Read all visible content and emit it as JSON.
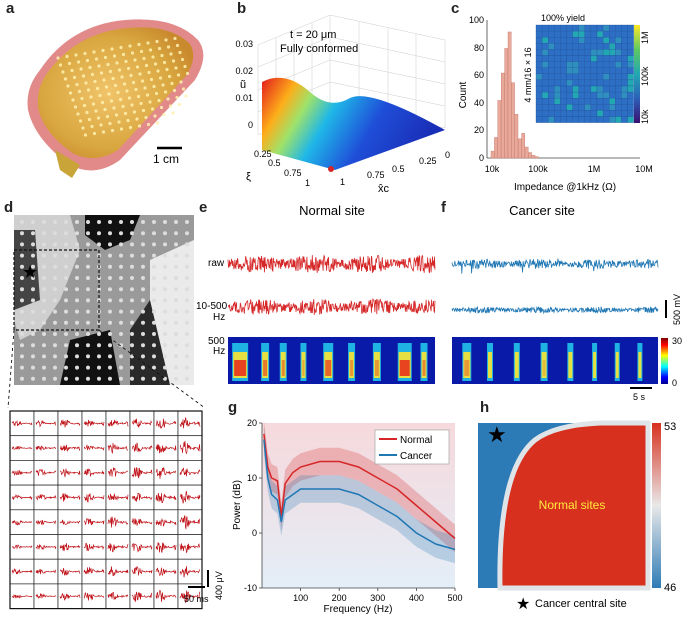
{
  "panels": {
    "a": "a",
    "b": "b",
    "c": "c",
    "d": "d",
    "e": "e",
    "f": "f",
    "g": "g",
    "h": "h"
  },
  "panel_a": {
    "scale_bar": "1 cm"
  },
  "panel_b": {
    "annotation_line1": "t = 20 μm",
    "annotation_line2": "Fully conformed",
    "zlabel": "ũ",
    "xlabel": "ξ",
    "ylabel": "x̂c",
    "z_ticks": [
      "0",
      "0.01",
      "0.02",
      "0.03"
    ],
    "x_ticks": [
      "0",
      "0.25",
      "0.5",
      "0.75",
      "1"
    ],
    "y_ticks": [
      "1",
      "0.75",
      "0.5",
      "0.25",
      "0"
    ]
  },
  "panel_c": {
    "inset_title": "100% yield",
    "inset_side": "4 mm/16 × 16",
    "colorbar_ticks": [
      "1M",
      "100k",
      "10k"
    ],
    "ylabel": "Count",
    "xlabel": "Impedance @1kHz (Ω)",
    "y_ticks": [
      "0",
      "20",
      "40",
      "60",
      "80",
      "100"
    ],
    "x_ticks": [
      "10k",
      "100k",
      "1M",
      "10M"
    ]
  },
  "panel_e": {
    "title": "Normal site",
    "row_raw": "raw",
    "row_band": "10-500\nHz",
    "row_band_line1": "10-500",
    "row_band_line2": "Hz",
    "row_spec_line1": "500",
    "row_spec_line2": "Hz"
  },
  "panel_f": {
    "title": "Cancer site",
    "scale_voltage": "500 mV",
    "colorbar_ticks": [
      "30",
      "0"
    ],
    "scale_time": "5 s"
  },
  "panel_d": {
    "scale_time": "50 ms",
    "scale_voltage": "400 μV"
  },
  "chart_data": [
    {
      "type": "histogram",
      "panel": "c",
      "xlabel": "Impedance @1kHz (Ω)",
      "ylabel": "Count",
      "x_scale": "log",
      "xlim": [
        "10k",
        "10M"
      ],
      "ylim": [
        0,
        100
      ],
      "bins": [
        {
          "impedance": "10k",
          "count": 5
        },
        {
          "impedance": "12k",
          "count": 15
        },
        {
          "impedance": "13k",
          "count": 42
        },
        {
          "impedance": "14k",
          "count": 62
        },
        {
          "impedance": "15k",
          "count": 80
        },
        {
          "impedance": "16k",
          "count": 92
        },
        {
          "impedance": "17k",
          "count": 55
        },
        {
          "impedance": "19k",
          "count": 32
        },
        {
          "impedance": "21k",
          "count": 14
        },
        {
          "impedance": "23k",
          "count": 18
        },
        {
          "impedance": "26k",
          "count": 8
        },
        {
          "impedance": "30k",
          "count": 4
        },
        {
          "impedance": "35k",
          "count": 2
        },
        {
          "impedance": "42k",
          "count": 1
        }
      ]
    },
    {
      "type": "line",
      "panel": "g",
      "xlabel": "Frequency (Hz)",
      "ylabel": "Power (dB)",
      "xlim": [
        0,
        500
      ],
      "ylim": [
        -10,
        20
      ],
      "x_ticks": [
        "100",
        "200",
        "300",
        "400",
        "500"
      ],
      "y_ticks": [
        "-10",
        "0",
        "10",
        "20"
      ],
      "series": [
        {
          "name": "Normal",
          "color": "#d62728",
          "x": [
            5,
            15,
            25,
            40,
            50,
            60,
            80,
            100,
            150,
            200,
            250,
            300,
            350,
            400,
            450,
            500
          ],
          "y": [
            18,
            12,
            10,
            9.5,
            3,
            9,
            11,
            12,
            13,
            13,
            12,
            10,
            8,
            5,
            2,
            -1
          ]
        },
        {
          "name": "Cancer",
          "color": "#1f77b4",
          "x": [
            5,
            15,
            25,
            40,
            50,
            60,
            80,
            100,
            150,
            200,
            250,
            300,
            350,
            400,
            450,
            500
          ],
          "y": [
            17,
            10,
            7,
            6,
            2,
            6,
            7,
            8,
            8,
            8,
            7,
            5,
            3,
            0,
            -2,
            -3
          ]
        }
      ]
    },
    {
      "type": "heatmap",
      "panel": "h",
      "annotation": "Normal sites",
      "colorbar_max": "53",
      "colorbar_min": "46",
      "legend": "Cancer central site"
    }
  ]
}
